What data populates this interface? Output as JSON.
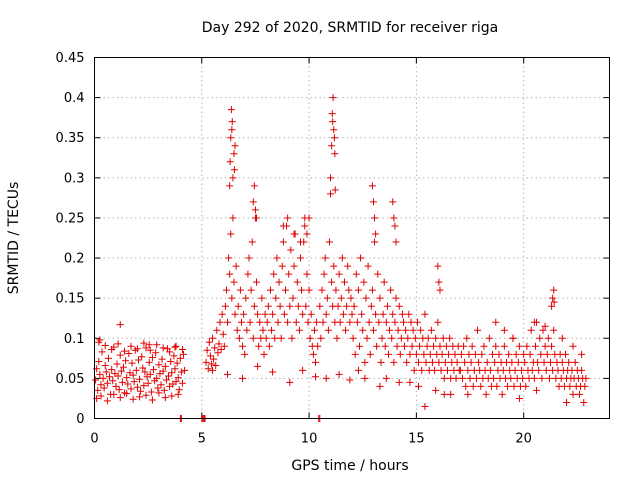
{
  "chart_data": {
    "type": "scatter",
    "title": "Day 292 of 2020, SRMTID for receiver riga",
    "xlabel": "GPS time / hours",
    "ylabel": "SRMTID / TECUs",
    "xlim": [
      0,
      24
    ],
    "ylim": [
      0,
      0.45
    ],
    "x_ticks": [
      0,
      5,
      10,
      15,
      20
    ],
    "x_tick_labels": [
      "0",
      "5",
      "10",
      "15",
      "20"
    ],
    "y_ticks": [
      0,
      0.05,
      0.1,
      0.15,
      0.2,
      0.25,
      0.3,
      0.35,
      0.4,
      0.45
    ],
    "y_tick_labels": [
      "0",
      "0.05",
      "0.1",
      "0.15",
      "0.2",
      "0.25",
      "0.3",
      "0.35",
      "0.4",
      "0.45"
    ],
    "grid": true,
    "legend": "none",
    "marker": "+",
    "color": "#e00000",
    "series": [
      {
        "x": [
          0.05,
          0.1,
          0.15,
          0.2,
          0.25,
          0.3,
          0.35,
          0.4,
          0.45,
          0.5,
          0.55,
          0.6,
          0.65,
          0.7,
          0.75,
          0.8,
          0.85,
          0.9,
          0.95,
          1.0,
          1.05,
          1.1,
          1.15,
          1.2,
          1.25,
          1.3,
          1.35,
          1.4,
          1.45,
          1.5,
          1.55,
          1.6,
          1.65,
          1.7,
          1.75,
          1.8,
          1.85,
          1.9,
          1.95,
          2.0,
          2.05,
          2.1,
          2.15,
          2.2,
          2.25,
          2.3,
          2.35,
          2.4,
          2.45,
          2.5,
          2.55,
          2.6,
          2.65,
          2.7,
          2.75,
          2.8,
          2.85,
          2.9,
          2.95,
          3.0,
          3.05,
          3.1,
          3.15,
          3.2,
          3.25,
          3.3,
          3.35,
          3.4,
          3.45,
          3.5,
          3.55,
          3.6,
          3.65,
          3.7,
          3.75,
          3.8,
          3.85,
          3.9,
          3.95,
          4.0,
          4.05,
          4.1,
          4.15,
          4.2,
          0.1,
          0.3,
          0.6,
          0.9,
          1.2,
          1.5,
          1.8,
          2.1,
          2.4,
          2.7,
          3.0,
          3.3,
          3.6,
          3.9,
          0.2,
          0.5,
          0.8,
          1.1,
          1.4,
          1.7,
          2.0,
          2.3,
          2.6,
          2.9,
          3.2,
          3.5,
          3.8,
          4.1,
          1.2,
          0.25,
          2.55,
          3.75
        ],
        "y": [
          0.048,
          0.062,
          0.035,
          0.071,
          0.055,
          0.042,
          0.083,
          0.05,
          0.038,
          0.066,
          0.058,
          0.044,
          0.075,
          0.052,
          0.03,
          0.061,
          0.047,
          0.089,
          0.056,
          0.04,
          0.068,
          0.053,
          0.036,
          0.079,
          0.059,
          0.045,
          0.064,
          0.032,
          0.072,
          0.051,
          0.043,
          0.081,
          0.057,
          0.037,
          0.069,
          0.054,
          0.046,
          0.085,
          0.06,
          0.039,
          0.073,
          0.049,
          0.034,
          0.077,
          0.063,
          0.041,
          0.058,
          0.088,
          0.052,
          0.044,
          0.07,
          0.055,
          0.033,
          0.076,
          0.061,
          0.047,
          0.082,
          0.05,
          0.038,
          0.067,
          0.056,
          0.042,
          0.074,
          0.059,
          0.035,
          0.065,
          0.048,
          0.087,
          0.053,
          0.04,
          0.071,
          0.057,
          0.043,
          0.078,
          0.062,
          0.046,
          0.069,
          0.051,
          0.036,
          0.075,
          0.058,
          0.044,
          0.08,
          0.06,
          0.025,
          0.028,
          0.022,
          0.03,
          0.026,
          0.031,
          0.024,
          0.027,
          0.029,
          0.023,
          0.032,
          0.026,
          0.028,
          0.03,
          0.095,
          0.091,
          0.086,
          0.093,
          0.084,
          0.09,
          0.087,
          0.094,
          0.085,
          0.092,
          0.088,
          0.083,
          0.09,
          0.086,
          0.117,
          0.098,
          0.092,
          0.089
        ]
      },
      {
        "x": [
          4.0,
          4.05,
          5.0,
          5.05,
          5.1,
          5.15,
          10.45,
          10.5
        ],
        "y": [
          0,
          0,
          0,
          0,
          0,
          0,
          0,
          0
        ]
      },
      {
        "x": [
          5.2,
          5.25,
          5.3,
          5.35,
          5.4,
          5.45,
          5.5,
          5.55,
          5.6,
          5.65,
          5.7,
          5.75,
          5.8,
          5.85,
          5.9,
          5.95,
          6.0,
          6.05,
          6.1,
          6.15,
          6.2,
          6.25,
          6.3,
          6.35,
          6.4,
          6.45,
          6.5,
          6.55,
          6.6,
          6.65,
          6.7,
          6.75,
          6.8,
          6.85,
          6.9,
          6.95,
          7.0,
          7.05,
          7.1,
          7.15,
          7.2,
          7.25,
          7.3,
          7.35,
          7.4,
          7.45,
          7.5,
          7.55,
          7.6,
          7.65,
          7.7,
          7.75,
          7.8,
          7.85,
          7.9,
          7.95,
          8.0,
          8.05,
          8.1,
          8.15,
          8.2,
          8.25,
          8.3,
          8.35,
          8.4,
          8.45,
          8.5,
          8.55,
          8.6,
          8.65,
          8.7,
          8.75,
          8.8,
          8.85,
          8.9,
          8.95,
          9.0,
          9.05,
          9.1,
          9.15,
          9.2,
          9.25,
          9.3,
          9.35,
          9.4,
          9.45,
          9.5,
          9.55,
          9.6,
          9.65,
          9.7,
          9.75,
          9.8,
          9.85,
          9.9,
          9.95,
          10.0,
          10.05,
          10.1,
          10.15,
          10.2,
          10.25,
          10.3,
          10.35,
          10.4,
          10.5,
          10.55,
          10.6,
          10.65,
          10.7,
          10.75,
          10.8,
          10.85,
          10.9,
          10.95,
          11.0,
          11.05,
          11.1,
          11.15,
          11.2,
          11.25,
          11.3,
          11.35,
          11.4,
          11.45,
          11.5,
          11.55,
          11.6,
          11.65,
          11.7,
          11.75,
          11.8,
          11.85,
          11.9,
          11.95,
          12.0,
          6.3,
          6.32,
          6.35,
          6.38,
          6.4,
          6.42,
          6.45,
          6.5,
          6.52,
          6.55,
          7.4,
          7.45,
          7.5,
          7.55,
          8.8,
          9.0,
          9.3,
          9.6,
          9.8,
          9.9,
          10.0,
          11.0,
          11.05,
          11.08,
          11.1,
          11.12,
          11.15,
          11.18,
          11.2,
          11.22,
          5.5,
          6.2,
          6.9,
          7.6,
          8.3,
          9.1,
          9.7,
          10.3,
          10.8,
          11.4,
          11.9
        ],
        "y": [
          0.07,
          0.085,
          0.062,
          0.095,
          0.078,
          0.068,
          0.1,
          0.074,
          0.088,
          0.066,
          0.11,
          0.082,
          0.093,
          0.12,
          0.086,
          0.13,
          0.105,
          0.09,
          0.14,
          0.16,
          0.12,
          0.2,
          0.18,
          0.23,
          0.15,
          0.25,
          0.17,
          0.13,
          0.19,
          0.11,
          0.14,
          0.1,
          0.16,
          0.12,
          0.09,
          0.13,
          0.08,
          0.15,
          0.11,
          0.18,
          0.2,
          0.12,
          0.16,
          0.22,
          0.1,
          0.14,
          0.25,
          0.17,
          0.13,
          0.09,
          0.12,
          0.1,
          0.15,
          0.11,
          0.08,
          0.13,
          0.1,
          0.12,
          0.14,
          0.09,
          0.16,
          0.11,
          0.13,
          0.18,
          0.1,
          0.15,
          0.2,
          0.12,
          0.17,
          0.14,
          0.1,
          0.19,
          0.22,
          0.13,
          0.16,
          0.24,
          0.12,
          0.18,
          0.14,
          0.21,
          0.1,
          0.15,
          0.19,
          0.23,
          0.12,
          0.17,
          0.14,
          0.11,
          0.2,
          0.16,
          0.13,
          0.22,
          0.25,
          0.14,
          0.18,
          0.12,
          0.16,
          0.1,
          0.13,
          0.09,
          0.08,
          0.11,
          0.07,
          0.12,
          0.09,
          0.14,
          0.1,
          0.16,
          0.12,
          0.18,
          0.2,
          0.13,
          0.15,
          0.11,
          0.22,
          0.28,
          0.17,
          0.14,
          0.19,
          0.12,
          0.16,
          0.1,
          0.14,
          0.18,
          0.12,
          0.15,
          0.2,
          0.13,
          0.17,
          0.11,
          0.14,
          0.19,
          0.16,
          0.12,
          0.15,
          0.13,
          0.29,
          0.32,
          0.35,
          0.385,
          0.36,
          0.37,
          0.3,
          0.33,
          0.31,
          0.34,
          0.27,
          0.29,
          0.26,
          0.25,
          0.24,
          0.25,
          0.23,
          0.22,
          0.24,
          0.23,
          0.25,
          0.3,
          0.34,
          0.38,
          0.37,
          0.4,
          0.36,
          0.35,
          0.33,
          0.285,
          0.06,
          0.055,
          0.05,
          0.065,
          0.058,
          0.045,
          0.06,
          0.052,
          0.05,
          0.055,
          0.048
        ]
      },
      {
        "x": [
          12.05,
          12.1,
          12.15,
          12.2,
          12.25,
          12.3,
          12.35,
          12.4,
          12.45,
          12.5,
          12.55,
          12.6,
          12.65,
          12.7,
          12.75,
          12.8,
          12.85,
          12.9,
          12.95,
          13.0,
          13.05,
          13.1,
          13.15,
          13.2,
          13.25,
          13.3,
          13.35,
          13.4,
          13.45,
          13.5,
          13.55,
          13.6,
          13.65,
          13.7,
          13.75,
          13.8,
          13.85,
          13.9,
          13.95,
          14.0,
          14.05,
          14.1,
          14.15,
          14.2,
          14.25,
          14.3,
          14.35,
          14.4,
          14.45,
          14.5,
          14.55,
          14.6,
          14.65,
          14.7,
          14.75,
          14.8,
          14.85,
          14.9,
          14.95,
          15.0,
          15.05,
          15.1,
          15.15,
          15.2,
          15.25,
          15.3,
          15.35,
          15.4,
          15.45,
          15.5,
          15.55,
          15.6,
          15.65,
          15.7,
          15.75,
          15.8,
          15.85,
          15.9,
          15.95,
          16.0,
          16.05,
          16.1,
          16.15,
          16.2,
          16.25,
          16.3,
          16.35,
          16.4,
          16.45,
          16.5,
          16.55,
          16.6,
          16.65,
          16.7,
          16.75,
          16.8,
          16.85,
          16.9,
          16.95,
          17.0,
          12.95,
          13.0,
          13.05,
          13.1,
          13.9,
          13.95,
          14.0,
          14.05,
          16.0,
          16.05,
          16.1,
          12.6,
          13.3,
          14.2,
          15.1,
          15.9,
          16.6,
          12.3,
          13.6,
          14.7,
          15.4,
          16.3
        ],
        "y": [
          0.1,
          0.14,
          0.08,
          0.18,
          0.12,
          0.16,
          0.09,
          0.2,
          0.13,
          0.11,
          0.17,
          0.07,
          0.15,
          0.1,
          0.19,
          0.12,
          0.08,
          0.14,
          0.16,
          0.11,
          0.22,
          0.13,
          0.09,
          0.18,
          0.12,
          0.15,
          0.07,
          0.1,
          0.13,
          0.17,
          0.09,
          0.12,
          0.14,
          0.08,
          0.11,
          0.16,
          0.1,
          0.13,
          0.07,
          0.12,
          0.15,
          0.09,
          0.11,
          0.14,
          0.08,
          0.1,
          0.13,
          0.12,
          0.09,
          0.11,
          0.07,
          0.1,
          0.13,
          0.08,
          0.12,
          0.09,
          0.11,
          0.06,
          0.1,
          0.08,
          0.12,
          0.07,
          0.09,
          0.11,
          0.06,
          0.1,
          0.08,
          0.13,
          0.07,
          0.09,
          0.1,
          0.06,
          0.08,
          0.11,
          0.07,
          0.09,
          0.06,
          0.1,
          0.08,
          0.12,
          0.07,
          0.09,
          0.06,
          0.08,
          0.1,
          0.05,
          0.07,
          0.09,
          0.06,
          0.08,
          0.1,
          0.05,
          0.07,
          0.09,
          0.06,
          0.08,
          0.05,
          0.07,
          0.09,
          0.06,
          0.29,
          0.27,
          0.25,
          0.23,
          0.27,
          0.25,
          0.24,
          0.22,
          0.19,
          0.17,
          0.16,
          0.05,
          0.04,
          0.045,
          0.04,
          0.035,
          0.03,
          0.06,
          0.05,
          0.045,
          0.015,
          0.03
        ]
      },
      {
        "x": [
          17.05,
          17.1,
          17.15,
          17.2,
          17.25,
          17.3,
          17.35,
          17.4,
          17.45,
          17.5,
          17.55,
          17.6,
          17.65,
          17.7,
          17.75,
          17.8,
          17.85,
          17.9,
          17.95,
          18.0,
          18.05,
          18.1,
          18.15,
          18.2,
          18.25,
          18.3,
          18.35,
          18.4,
          18.45,
          18.5,
          18.55,
          18.6,
          18.65,
          18.7,
          18.75,
          18.8,
          18.85,
          18.9,
          18.95,
          19.0,
          19.05,
          19.1,
          19.15,
          19.2,
          19.25,
          19.3,
          19.35,
          19.4,
          19.45,
          19.5,
          19.55,
          19.6,
          19.65,
          19.7,
          19.75,
          19.8,
          19.85,
          19.9,
          19.95,
          20.0,
          20.05,
          20.1,
          20.15,
          20.2,
          20.25,
          20.3,
          20.35,
          20.4,
          20.45,
          20.5,
          20.55,
          20.6,
          20.65,
          20.7,
          20.75,
          20.8,
          20.85,
          20.9,
          20.95,
          21.0,
          21.05,
          21.1,
          21.15,
          21.2,
          21.25,
          21.3,
          21.35,
          21.4,
          21.45,
          21.5,
          21.55,
          21.6,
          21.65,
          21.7,
          21.75,
          21.8,
          21.85,
          21.9,
          21.95,
          22.0,
          22.05,
          22.1,
          22.15,
          22.2,
          22.25,
          22.3,
          22.35,
          22.4,
          22.45,
          22.5,
          22.55,
          22.6,
          22.65,
          22.7,
          22.75,
          22.8,
          22.85,
          22.9,
          21.3,
          21.35,
          21.4,
          21.42,
          18.7,
          19.1,
          19.5,
          20.5,
          21.0,
          21.8,
          22.3,
          22.7,
          17.4,
          19.8,
          20.6,
          22.0
        ],
        "y": [
          0.06,
          0.08,
          0.05,
          0.09,
          0.07,
          0.04,
          0.1,
          0.06,
          0.08,
          0.05,
          0.07,
          0.09,
          0.04,
          0.06,
          0.08,
          0.05,
          0.11,
          0.07,
          0.06,
          0.04,
          0.08,
          0.05,
          0.09,
          0.06,
          0.03,
          0.07,
          0.05,
          0.1,
          0.06,
          0.04,
          0.08,
          0.05,
          0.07,
          0.09,
          0.04,
          0.06,
          0.08,
          0.05,
          0.07,
          0.03,
          0.06,
          0.09,
          0.05,
          0.07,
          0.04,
          0.08,
          0.06,
          0.05,
          0.07,
          0.1,
          0.04,
          0.06,
          0.08,
          0.05,
          0.07,
          0.09,
          0.04,
          0.06,
          0.05,
          0.08,
          0.07,
          0.04,
          0.09,
          0.06,
          0.05,
          0.08,
          0.11,
          0.06,
          0.07,
          0.05,
          0.09,
          0.12,
          0.07,
          0.06,
          0.1,
          0.08,
          0.05,
          0.11,
          0.07,
          0.09,
          0.06,
          0.08,
          0.1,
          0.05,
          0.07,
          0.09,
          0.06,
          0.11,
          0.08,
          0.05,
          0.07,
          0.06,
          0.04,
          0.08,
          0.05,
          0.07,
          0.06,
          0.04,
          0.08,
          0.05,
          0.06,
          0.07,
          0.04,
          0.05,
          0.06,
          0.03,
          0.05,
          0.07,
          0.04,
          0.06,
          0.05,
          0.03,
          0.04,
          0.06,
          0.05,
          0.02,
          0.04,
          0.05,
          0.14,
          0.15,
          0.16,
          0.145,
          0.12,
          0.11,
          0.1,
          0.12,
          0.115,
          0.1,
          0.09,
          0.08,
          0.03,
          0.025,
          0.035,
          0.02
        ]
      }
    ]
  }
}
